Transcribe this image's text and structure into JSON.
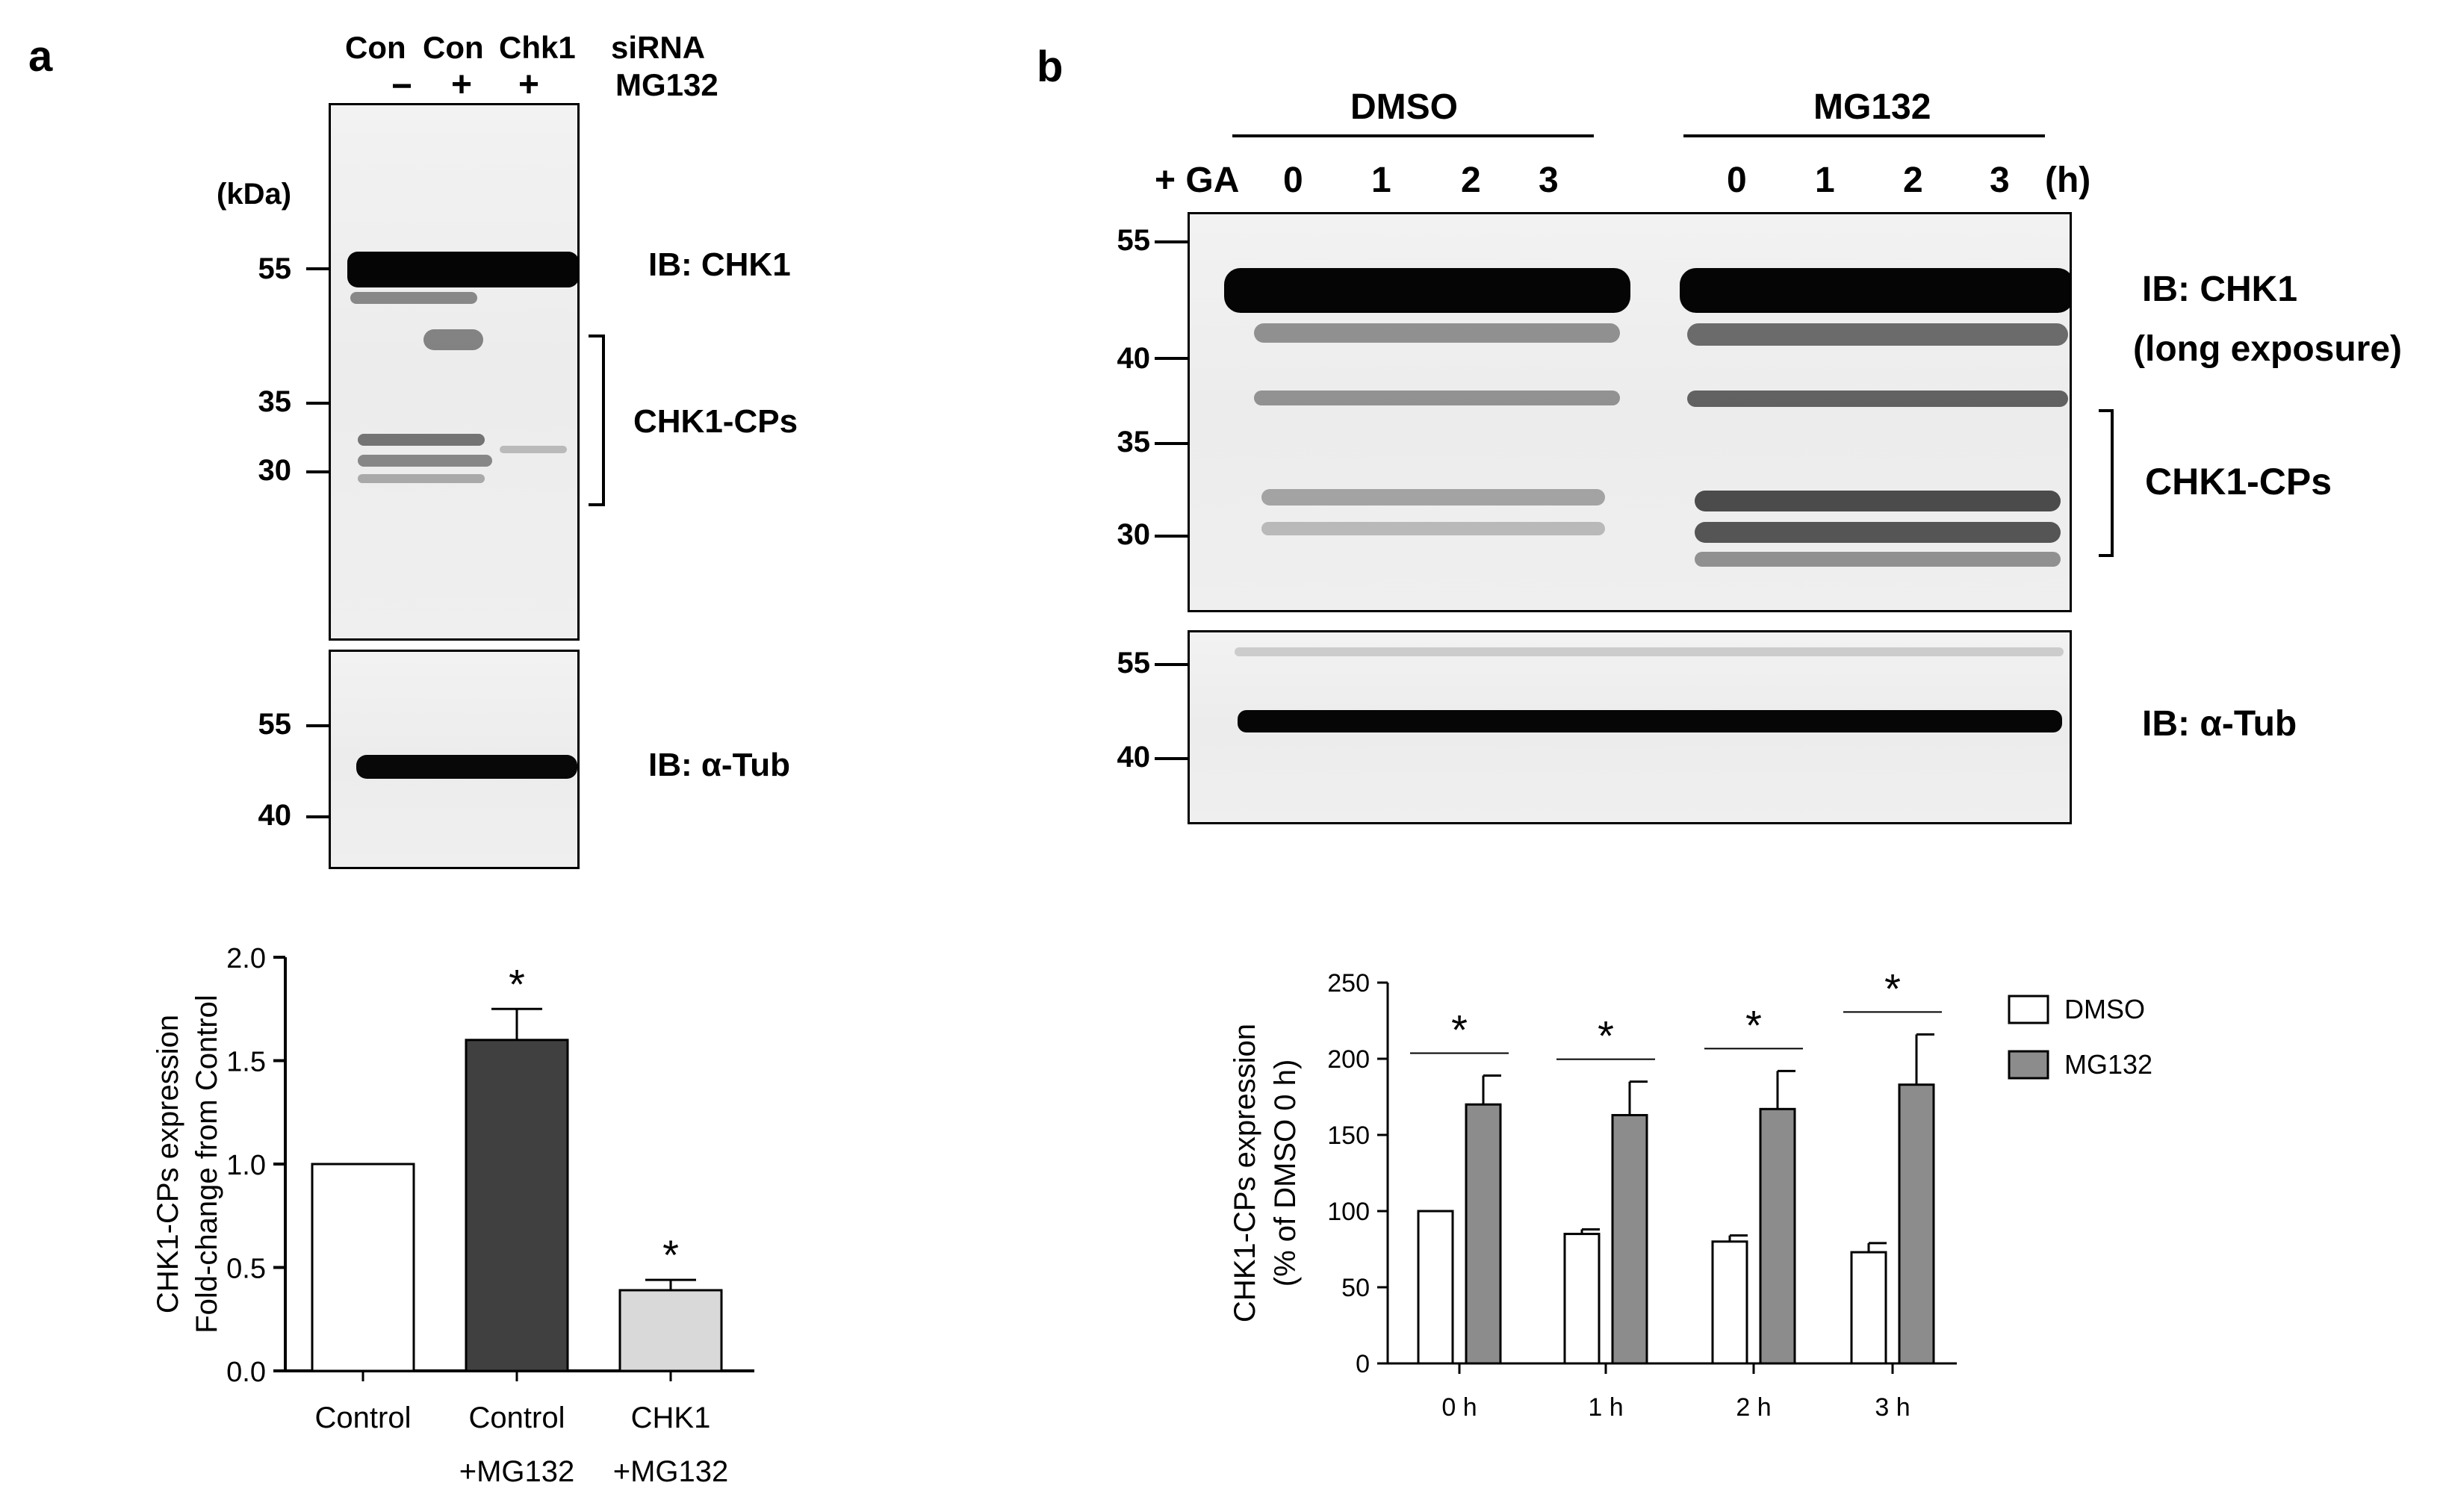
{
  "panel_a": {
    "letter": "a",
    "lanes": [
      "Con",
      "Con",
      "Chk1"
    ],
    "row1_label": "siRNA",
    "treatments": [
      "−",
      "+",
      "+"
    ],
    "row2_label": "MG132",
    "kda_label": "(kDa)",
    "blot1_markers": [
      "55",
      "35",
      "30"
    ],
    "blot1_label": "IB: CHK1",
    "bracket_label": "CHK1-CPs",
    "blot2_markers": [
      "55",
      "40"
    ],
    "blot2_label": "IB: α-Tub"
  },
  "panel_b": {
    "letter": "b",
    "group1": "DMSO",
    "group2": "MG132",
    "ga_label": "+ GA",
    "timepoints": [
      "0",
      "1",
      "2",
      "3",
      "0",
      "1",
      "2",
      "3"
    ],
    "unit": "(h)",
    "blot1_markers": [
      "55",
      "40",
      "35",
      "30"
    ],
    "blot1_label_line1": "IB: CHK1",
    "blot1_label_line2": "(long exposure)",
    "bracket_label": "CHK1-CPs",
    "blot2_markers": [
      "55",
      "40"
    ],
    "blot2_label": "IB: α-Tub"
  },
  "chart_data": [
    {
      "type": "bar",
      "categories": [
        "Control",
        "Control\n+MG132",
        "CHK1\n+MG132"
      ],
      "values": [
        1.0,
        1.6,
        0.39
      ],
      "errors": [
        0,
        0.15,
        0.05
      ],
      "colors": [
        "#ffffff",
        "#404040",
        "#d9d9d9"
      ],
      "significance": [
        "",
        "*",
        "*"
      ],
      "ylabel_line1": "CHK1-CPs expression",
      "ylabel_line2": "Fold-change from Control",
      "ylim": [
        0,
        2.0
      ],
      "yticks": [
        "0.0",
        "0.5",
        "1.0",
        "1.5",
        "2.0"
      ]
    },
    {
      "type": "bar",
      "categories": [
        "0 h",
        "1 h",
        "2 h",
        "3 h"
      ],
      "series": [
        {
          "name": "DMSO",
          "values": [
            100,
            85,
            80,
            73
          ],
          "errors": [
            0,
            3,
            4,
            6
          ],
          "color": "#ffffff"
        },
        {
          "name": "MG132",
          "values": [
            170,
            163,
            167,
            183
          ],
          "errors": [
            19,
            22,
            25,
            33
          ],
          "color": "#8c8c8c"
        }
      ],
      "significance": [
        "*",
        "*",
        "*",
        "*"
      ],
      "ylabel_line1": "CHK1-CPs expression",
      "ylabel_line2": "(% of DMSO 0 h)",
      "ylim": [
        0,
        250
      ],
      "yticks": [
        "0",
        "50",
        "100",
        "150",
        "200",
        "250"
      ],
      "legend_position": "top-right"
    }
  ]
}
